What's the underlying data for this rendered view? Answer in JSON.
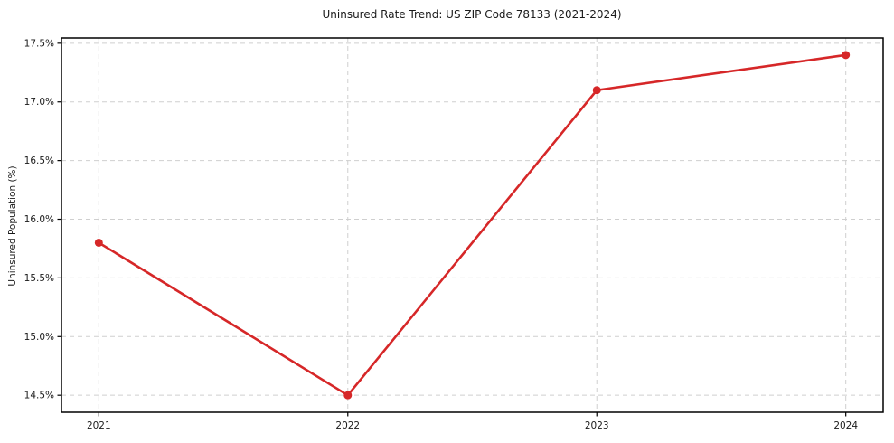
{
  "title": "Uninsured Rate Trend: US ZIP Code 78133 (2021-2024)",
  "chart_data": {
    "type": "line",
    "title": "Uninsured Rate Trend: US ZIP Code 78133 (2021-2024)",
    "xlabel": "",
    "ylabel": "Uninsured Population (%)",
    "x": [
      2021,
      2022,
      2023,
      2024
    ],
    "values": [
      15.8,
      14.5,
      17.1,
      17.4
    ],
    "xticks": [
      2021,
      2022,
      2023,
      2024
    ],
    "xtick_labels": [
      "2021",
      "2022",
      "2023",
      "2024"
    ],
    "yticks": [
      14.5,
      15.0,
      15.5,
      16.0,
      16.5,
      17.0,
      17.5
    ],
    "ytick_labels": [
      "14.5%",
      "15.0%",
      "15.5%",
      "16.0%",
      "16.5%",
      "17.0%",
      "17.5%"
    ],
    "xlim": [
      2020.85,
      2024.15
    ],
    "ylim": [
      14.355,
      17.545
    ],
    "grid": true,
    "legend": false,
    "line_color": "#d62728",
    "marker": "o",
    "grid_color": "#cfcfcf",
    "spine_color": "#000000"
  }
}
